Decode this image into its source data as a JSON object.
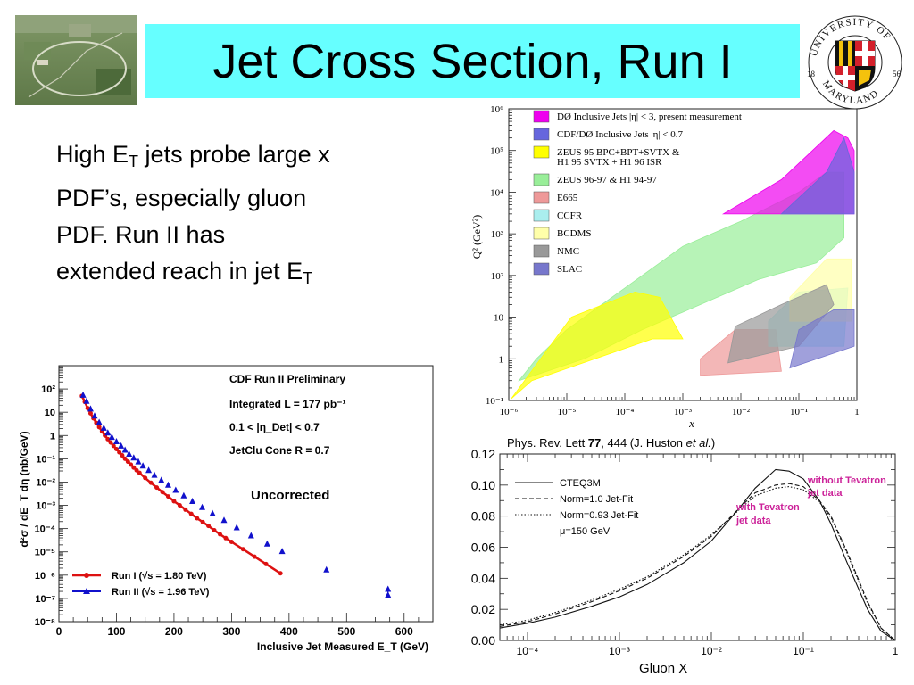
{
  "slide": {
    "title": "Jet Cross Section, Run I",
    "body": {
      "line1_pre": "High E",
      "line1_sub": "T",
      "line1_post": " jets probe large x",
      "line2": "PDF’s, especially gluon",
      "line3": "PDF.  Run II has",
      "line4_pre": "extended reach in jet E",
      "line4_sub": "T"
    },
    "logo": {
      "top_text": "UNIVERSITY OF",
      "bottom_text": "MARYLAND",
      "year_left": "18",
      "year_right": "56"
    },
    "colors": {
      "title_bg": "#66ffff",
      "run1": "#dd1111",
      "run2": "#1111cc",
      "annot": "#cc2299"
    }
  },
  "chart_data": [
    {
      "type": "area",
      "xlabel": "x",
      "ylabel": "Q² (GeV²)",
      "x_scale": "log",
      "y_scale": "log",
      "xlim": [
        1e-06,
        1
      ],
      "ylim": [
        0.1,
        1000000
      ],
      "xticks": [
        "10⁻⁶",
        "10⁻⁵",
        "10⁻⁴",
        "10⁻³",
        "10⁻²",
        "10⁻¹",
        "1"
      ],
      "yticks": [
        "10⁻¹",
        "1",
        "10",
        "10²",
        "10³",
        "10⁴",
        "10⁵",
        "10⁶"
      ],
      "legend": [
        {
          "label": "DØ Inclusive Jets |η| < 3, present measurement",
          "color": "#ee00ee"
        },
        {
          "label": "CDF/DØ Inclusive Jets |η| < 0.7",
          "color": "#6666dd"
        },
        {
          "label": "ZEUS 95 BPC+BPT+SVTX &",
          "label2": "H1 95 SVTX + H1 96 ISR",
          "color": "#ffff00"
        },
        {
          "label": "ZEUS 96-97 & H1 94-97",
          "color": "#99ee99"
        },
        {
          "label": "E665",
          "color": "#ee9999"
        },
        {
          "label": "CCFR",
          "color": "#aaeeee"
        },
        {
          "label": "BCDMS",
          "color": "#ffffaa"
        },
        {
          "label": "NMC",
          "color": "#999999"
        },
        {
          "label": "SLAC",
          "color": "#7777cc"
        }
      ],
      "regions": [
        {
          "name": "ZEUS 96-97 & H1 94-97",
          "color": "#99ee99",
          "points": [
            [
              1.5e-06,
              0.3
            ],
            [
              2e-05,
              1
            ],
            [
              0.0002,
              5
            ],
            [
              0.002,
              20
            ],
            [
              0.02,
              80
            ],
            [
              0.2,
              200
            ],
            [
              0.6,
              800
            ],
            [
              0.6,
              30000
            ],
            [
              0.3,
              30000
            ],
            [
              0.1,
              10000
            ],
            [
              0.01,
              2000
            ],
            [
              0.001,
              500
            ],
            [
              0.0001,
              50
            ],
            [
              1e-05,
              5
            ],
            [
              3e-06,
              1
            ]
          ]
        },
        {
          "name": "ZEUS 95 BPC+BPT+SVTX & H1 95 SVTX + H1 96 ISR",
          "color": "#ffff00",
          "points": [
            [
              1.1e-06,
              0.11
            ],
            [
              2.5e-06,
              0.3
            ],
            [
              0.0003,
              3
            ],
            [
              0.001,
              3
            ],
            [
              0.0004,
              30
            ],
            [
              0.00015,
              40
            ],
            [
              1.2e-05,
              10
            ]
          ]
        },
        {
          "name": "DØ Inclusive Jets |η| < 3, present measurement",
          "color": "#ee00ee",
          "points": [
            [
              0.005,
              3000
            ],
            [
              0.3,
              3000
            ],
            [
              0.9,
              3000
            ],
            [
              0.9,
              100000
            ],
            [
              0.7,
              200000
            ],
            [
              0.4,
              300000
            ],
            [
              0.05,
              20000
            ]
          ]
        },
        {
          "name": "CDF/DØ Inclusive Jets |η| < 0.7",
          "color": "#6666dd",
          "points": [
            [
              0.05,
              3000
            ],
            [
              0.9,
              3000
            ],
            [
              0.9,
              30000
            ],
            [
              0.6,
              200000
            ],
            [
              0.3,
              30000
            ]
          ]
        },
        {
          "name": "E665",
          "color": "#ee9999",
          "points": [
            [
              0.002,
              0.4
            ],
            [
              0.05,
              0.5
            ],
            [
              0.04,
              5
            ],
            [
              0.008,
              5
            ],
            [
              0.002,
              1
            ]
          ]
        },
        {
          "name": "CCFR",
          "color": "#aaeeee",
          "points": [
            [
              0.03,
              2
            ],
            [
              0.6,
              2
            ],
            [
              0.7,
              50
            ],
            [
              0.1,
              40
            ],
            [
              0.03,
              8
            ]
          ]
        },
        {
          "name": "BCDMS",
          "color": "#ffffaa",
          "points": [
            [
              0.07,
              8
            ],
            [
              0.8,
              8
            ],
            [
              0.8,
              250
            ],
            [
              0.3,
              250
            ],
            [
              0.07,
              30
            ]
          ]
        },
        {
          "name": "NMC",
          "color": "#999999",
          "points": [
            [
              0.006,
              0.8
            ],
            [
              0.1,
              2
            ],
            [
              0.4,
              20
            ],
            [
              0.3,
              60
            ],
            [
              0.05,
              20
            ],
            [
              0.008,
              6
            ]
          ]
        },
        {
          "name": "SLAC",
          "color": "#7777cc",
          "points": [
            [
              0.07,
              0.6
            ],
            [
              0.9,
              2
            ],
            [
              0.9,
              15
            ],
            [
              0.4,
              15
            ],
            [
              0.1,
              5
            ]
          ]
        }
      ]
    },
    {
      "type": "scatter",
      "y_scale": "log",
      "ylabel": "d²σ / dE_T dη   (nb/GeV)",
      "xlabel": "Inclusive Jet Measured E_T   (GeV)",
      "xlim": [
        0,
        650
      ],
      "ylim": [
        1e-08,
        1000
      ],
      "xticks": [
        "0",
        "100",
        "200",
        "300",
        "400",
        "500",
        "600"
      ],
      "yticks": [
        "10⁻⁸",
        "10⁻⁷",
        "10⁻⁶",
        "10⁻⁵",
        "10⁻⁴",
        "10⁻³",
        "10⁻²",
        "10⁻¹",
        "1",
        "10",
        "10²"
      ],
      "annotations": {
        "title": "CDF Run II Preliminary",
        "lumi": "Integrated L = 177 pb⁻¹",
        "eta": "0.1 < |η_Det| < 0.7",
        "cone": "JetClu Cone R = 0.7",
        "uncorrected": "Uncorrected"
      },
      "series": [
        {
          "name": "Run I (√s = 1.80 TeV)",
          "color": "#dd1111",
          "marker": "circle",
          "x": [
            40,
            45,
            50,
            55,
            60,
            65,
            70,
            75,
            80,
            85,
            90,
            95,
            100,
            105,
            110,
            115,
            120,
            125,
            130,
            135,
            140,
            150,
            160,
            170,
            180,
            190,
            200,
            210,
            220,
            230,
            240,
            250,
            260,
            270,
            280,
            290,
            300,
            320,
            340,
            360,
            385
          ],
          "y": [
            50,
            28,
            15,
            9,
            5.5,
            3.5,
            2.3,
            1.5,
            1.0,
            0.7,
            0.5,
            0.36,
            0.26,
            0.19,
            0.14,
            0.1,
            0.075,
            0.056,
            0.042,
            0.032,
            0.025,
            0.015,
            0.0093,
            0.0058,
            0.0037,
            0.0024,
            0.0015,
            0.001,
            0.00065,
            0.00043,
            0.00028,
            0.00019,
            0.00013,
            8.5e-05,
            5.7e-05,
            3.9e-05,
            2.7e-05,
            1.3e-05,
            6.2e-06,
            3e-06,
            1.2e-06
          ]
        },
        {
          "name": "Run II (√s = 1.96 TeV)",
          "color": "#1111cc",
          "marker": "triangle",
          "x": [
            42,
            48,
            55,
            62,
            70,
            78,
            85,
            92,
            100,
            108,
            115,
            122,
            130,
            138,
            146,
            156,
            166,
            178,
            190,
            203,
            217,
            232,
            249,
            267,
            287,
            309,
            334,
            362,
            388,
            465,
            572,
            572
          ],
          "y": [
            55,
            30,
            14,
            7,
            3.7,
            2.1,
            1.3,
            0.85,
            0.55,
            0.36,
            0.24,
            0.16,
            0.11,
            0.075,
            0.05,
            0.032,
            0.02,
            0.012,
            0.0075,
            0.0045,
            0.0026,
            0.0015,
            0.00082,
            0.00045,
            0.00023,
            0.00011,
            5e-05,
            2.2e-05,
            1.05e-05,
            1.7e-06,
            2.5e-07,
            1.4e-07
          ]
        }
      ]
    },
    {
      "type": "line",
      "x_scale": "log",
      "xlabel": "Gluon X",
      "xlim": [
        5e-05,
        1
      ],
      "ylim": [
        0,
        0.12
      ],
      "xticks": [
        "10⁻⁴",
        "10⁻³",
        "10⁻²",
        "10⁻¹",
        "1"
      ],
      "yticks": [
        "0.00",
        "0.02",
        "0.04",
        "0.06",
        "0.08",
        "0.10",
        "0.12"
      ],
      "citation_pre": "Phys. Rev. Lett ",
      "citation_vol": "77",
      "citation_mid": ", 444 (J. Huston ",
      "citation_etal": "et al.",
      "citation_post": ")",
      "legend_params": "μ=150 GeV",
      "annotations": {
        "without": "without Tevatron",
        "with": "with Tevatron",
        "jet_data": "jet data"
      },
      "x": [
        5e-05,
        0.0001,
        0.0002,
        0.0005,
        0.001,
        0.002,
        0.005,
        0.01,
        0.02,
        0.03,
        0.05,
        0.07,
        0.1,
        0.15,
        0.2,
        0.3,
        0.5,
        0.7,
        1.0
      ],
      "series": [
        {
          "name": "CTEQ3M",
          "style": "solid",
          "values": [
            0.008,
            0.011,
            0.015,
            0.022,
            0.028,
            0.036,
            0.05,
            0.064,
            0.085,
            0.098,
            0.11,
            0.109,
            0.104,
            0.09,
            0.075,
            0.05,
            0.02,
            0.006,
            0.0
          ]
        },
        {
          "name": "Norm=1.0 Jet-Fit",
          "style": "dashed",
          "values": [
            0.009,
            0.012,
            0.017,
            0.025,
            0.032,
            0.04,
            0.054,
            0.067,
            0.085,
            0.095,
            0.1,
            0.101,
            0.099,
            0.09,
            0.08,
            0.057,
            0.025,
            0.008,
            0.0
          ]
        },
        {
          "name": "Norm=0.93 Jet-Fit",
          "style": "dotted",
          "values": [
            0.01,
            0.013,
            0.018,
            0.026,
            0.033,
            0.041,
            0.055,
            0.068,
            0.084,
            0.093,
            0.098,
            0.099,
            0.097,
            0.089,
            0.079,
            0.056,
            0.024,
            0.008,
            0.0
          ]
        }
      ]
    }
  ]
}
